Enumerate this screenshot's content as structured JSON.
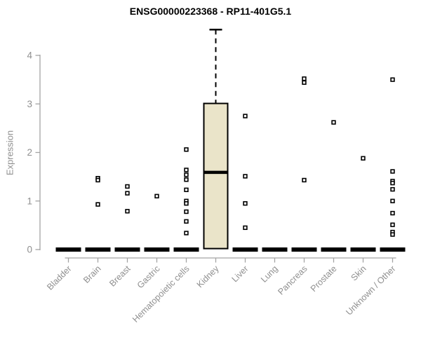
{
  "chart_data": {
    "type": "boxplot",
    "title": "ENSG00000223368 - RP11-401G5.1",
    "xlabel": "",
    "ylabel": "Expression",
    "ylim": [
      0,
      4
    ],
    "yticks": [
      0,
      1,
      2,
      3,
      4
    ],
    "grid": false,
    "x_label_rotation": 45,
    "marker": "open-square",
    "categories": [
      "Bladder",
      "Brain",
      "Breast",
      "Gastric",
      "Hematopoietic cells",
      "Kidney",
      "Liver",
      "Lung",
      "Pancreas",
      "Prostate",
      "Skin",
      "Unknown / Other"
    ],
    "series": [
      {
        "name": "Bladder",
        "q1": 0,
        "median": 0,
        "q3": 0,
        "whisker_low": 0,
        "whisker_high": 0,
        "outliers": []
      },
      {
        "name": "Brain",
        "q1": 0,
        "median": 0,
        "q3": 0,
        "whisker_low": 0,
        "whisker_high": 0,
        "outliers": [
          1.47,
          1.43,
          0.93
        ]
      },
      {
        "name": "Breast",
        "q1": 0,
        "median": 0,
        "q3": 0,
        "whisker_low": 0,
        "whisker_high": 0,
        "outliers": [
          1.3,
          1.16,
          0.79
        ]
      },
      {
        "name": "Gastric",
        "q1": 0,
        "median": 0,
        "q3": 0,
        "whisker_low": 0,
        "whisker_high": 0,
        "outliers": [
          1.1
        ]
      },
      {
        "name": "Hematopoietic cells",
        "q1": 0,
        "median": 0,
        "q3": 0,
        "whisker_low": 0,
        "whisker_high": 0,
        "outliers": [
          2.06,
          1.64,
          1.54,
          1.44,
          1.23,
          1.0,
          0.95,
          0.78,
          0.58,
          0.34
        ]
      },
      {
        "name": "Kidney",
        "q1": 0.02,
        "median": 1.59,
        "q3": 3.01,
        "whisker_low": 0.02,
        "whisker_high": 4.53,
        "outliers": []
      },
      {
        "name": "Liver",
        "q1": 0,
        "median": 0,
        "q3": 0,
        "whisker_low": 0,
        "whisker_high": 0,
        "outliers": [
          2.75,
          1.51,
          0.95,
          0.45
        ]
      },
      {
        "name": "Lung",
        "q1": 0,
        "median": 0,
        "q3": 0,
        "whisker_low": 0,
        "whisker_high": 0,
        "outliers": []
      },
      {
        "name": "Pancreas",
        "q1": 0,
        "median": 0,
        "q3": 0,
        "whisker_low": 0,
        "whisker_high": 0,
        "outliers": [
          3.52,
          3.44,
          1.43
        ]
      },
      {
        "name": "Prostate",
        "q1": 0,
        "median": 0,
        "q3": 0,
        "whisker_low": 0,
        "whisker_high": 0,
        "outliers": [
          2.62
        ]
      },
      {
        "name": "Skin",
        "q1": 0,
        "median": 0,
        "q3": 0,
        "whisker_low": 0,
        "whisker_high": 0,
        "outliers": [
          1.88
        ]
      },
      {
        "name": "Unknown / Other",
        "q1": 0,
        "median": 0,
        "q3": 0,
        "whisker_low": 0,
        "whisker_high": 0,
        "outliers": [
          3.5,
          1.61,
          1.41,
          1.37,
          1.24,
          1.0,
          0.75,
          0.51,
          0.36,
          0.31
        ]
      }
    ],
    "colors": {
      "background": "#FFFFFF",
      "box_fill": "#EAE4C9",
      "box_border": "#000000",
      "median": "#000000",
      "whisker": "#000000",
      "outlier": "#000000",
      "axis": "#A3A3A3",
      "tick_label": "#8F8F8F",
      "title": "#000000"
    }
  }
}
